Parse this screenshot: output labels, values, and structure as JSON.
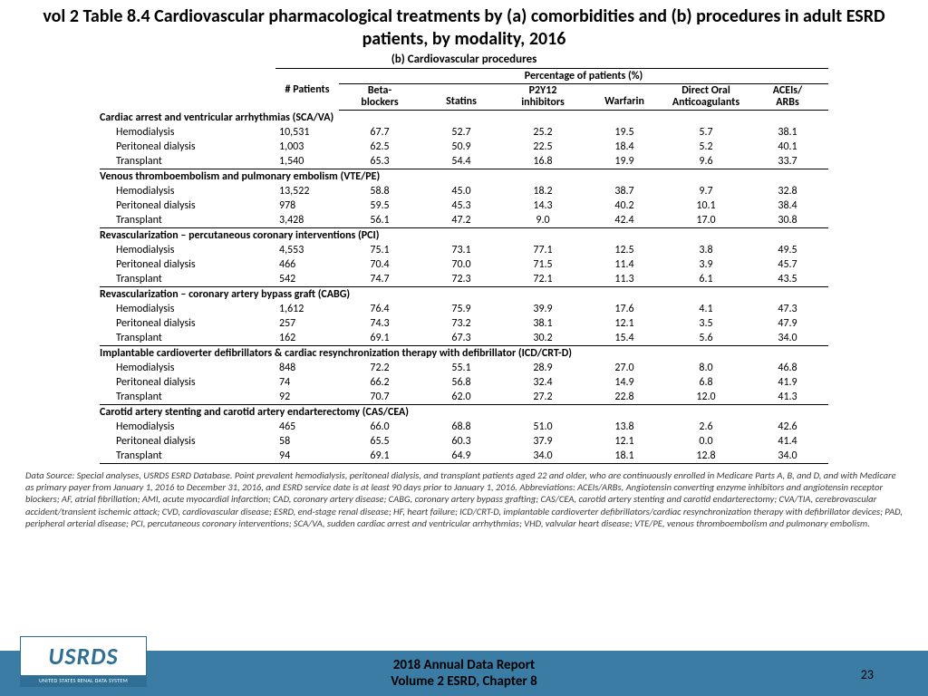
{
  "title": "vol 2 Table 8.4 Cardiovascular pharmacological treatments by (a) comorbidities and (b) procedures in adult ESRD patients, by modality, 2016",
  "subtitle": "(b) Cardiovascular procedures",
  "columns": {
    "patients": "# Patients",
    "span": "Percentage of patients (%)",
    "c1a": "Beta-",
    "c1b": "blockers",
    "c2": "Statins",
    "c3a": "P2Y12",
    "c3b": "inhibitors",
    "c4": "Warfarin",
    "c5a": "Direct Oral",
    "c5b": "Anticoagulants",
    "c6a": "ACEIs/",
    "c6b": "ARBs"
  },
  "sections": [
    {
      "label": "Cardiac arrest and ventricular arrhythmias (SCA/VA)",
      "rows": [
        [
          "Hemodialysis",
          "10,531",
          "67.7",
          "52.7",
          "25.2",
          "19.5",
          "5.7",
          "38.1"
        ],
        [
          "Peritoneal dialysis",
          "1,003",
          "62.5",
          "50.9",
          "22.5",
          "18.4",
          "5.2",
          "40.1"
        ],
        [
          "Transplant",
          "1,540",
          "65.3",
          "54.4",
          "16.8",
          "19.9",
          "9.6",
          "33.7"
        ]
      ]
    },
    {
      "label": "Venous thromboembolism and pulmonary embolism (VTE/PE)",
      "rows": [
        [
          "Hemodialysis",
          "13,522",
          "58.8",
          "45.0",
          "18.2",
          "38.7",
          "9.7",
          "32.8"
        ],
        [
          "Peritoneal dialysis",
          "978",
          "59.5",
          "45.3",
          "14.3",
          "40.2",
          "10.1",
          "38.4"
        ],
        [
          "Transplant",
          "3,428",
          "56.1",
          "47.2",
          "9.0",
          "42.4",
          "17.0",
          "30.8"
        ]
      ]
    },
    {
      "label": "Revascularization – percutaneous coronary interventions (PCI)",
      "rows": [
        [
          "Hemodialysis",
          "4,553",
          "75.1",
          "73.1",
          "77.1",
          "12.5",
          "3.8",
          "49.5"
        ],
        [
          "Peritoneal dialysis",
          "466",
          "70.4",
          "70.0",
          "71.5",
          "11.4",
          "3.9",
          "45.7"
        ],
        [
          "Transplant",
          "542",
          "74.7",
          "72.3",
          "72.1",
          "11.3",
          "6.1",
          "43.5"
        ]
      ]
    },
    {
      "label": "Revascularization – coronary artery bypass graft (CABG)",
      "rows": [
        [
          "Hemodialysis",
          "1,612",
          "76.4",
          "75.9",
          "39.9",
          "17.6",
          "4.1",
          "47.3"
        ],
        [
          "Peritoneal dialysis",
          "257",
          "74.3",
          "73.2",
          "38.1",
          "12.1",
          "3.5",
          "47.9"
        ],
        [
          "Transplant",
          "162",
          "69.1",
          "67.3",
          "30.2",
          "15.4",
          "5.6",
          "34.0"
        ]
      ]
    },
    {
      "label": "Implantable cardioverter defibrillators & cardiac resynchronization therapy with defibrillator (ICD/CRT-D)",
      "rows": [
        [
          "Hemodialysis",
          "848",
          "72.2",
          "55.1",
          "28.9",
          "27.0",
          "8.0",
          "46.8"
        ],
        [
          "Peritoneal dialysis",
          "74",
          "66.2",
          "56.8",
          "32.4",
          "14.9",
          "6.8",
          "41.9"
        ],
        [
          "Transplant",
          "92",
          "70.7",
          "62.0",
          "27.2",
          "22.8",
          "12.0",
          "41.3"
        ]
      ]
    },
    {
      "label": "Carotid artery stenting and carotid artery endarterectomy (CAS/CEA)",
      "rows": [
        [
          "Hemodialysis",
          "465",
          "66.0",
          "68.8",
          "51.0",
          "13.8",
          "2.6",
          "42.6"
        ],
        [
          "Peritoneal dialysis",
          "58",
          "65.5",
          "60.3",
          "37.9",
          "12.1",
          "0.0",
          "41.4"
        ],
        [
          "Transplant",
          "94",
          "69.1",
          "64.9",
          "34.0",
          "18.1",
          "12.8",
          "34.0"
        ]
      ]
    }
  ],
  "footnote": "Data Source: Special analyses, USRDS ESRD Database. Point prevalent hemodialysis, peritoneal dialysis, and transplant patients aged 22 and older, who are continuously enrolled in Medicare Parts A, B, and D, and with Medicare as primary payer from January 1, 2016 to December 31, 2016, and ESRD service date is at least 90 days prior to January 1, 2016. Abbreviations: ACEIs/ARBs, Angiotensin converting enzyme inhibitors and angiotensin receptor blockers; AF, atrial fibrillation; AMI, acute myocardial infarction; CAD, coronary artery disease; CABG, coronary artery bypass grafting; CAS/CEA, carotid artery stenting and carotid endarterectomy; CVA/TIA, cerebrovascular accident/transient ischemic attack; CVD, cardiovascular disease; ESRD, end-stage renal disease; HF, heart failure; ICD/CRT-D, implantable cardioverter defibrillators/cardiac resynchronization therapy with defibrillator devices; PAD, peripheral arterial disease; PCI, percutaneous coronary interventions; SCA/VA, sudden cardiac arrest and ventricular arrhythmias; VHD, valvular heart disease; VTE/PE, venous thromboembolism and pulmonary embolism.",
  "footer": {
    "line1": "2018 Annual Data Report",
    "line2": "Volume 2 ESRD, Chapter 8",
    "page": "23"
  },
  "logo": {
    "text": "USRDS",
    "sub": "UNITED STATES RENAL DATA SYSTEM"
  }
}
